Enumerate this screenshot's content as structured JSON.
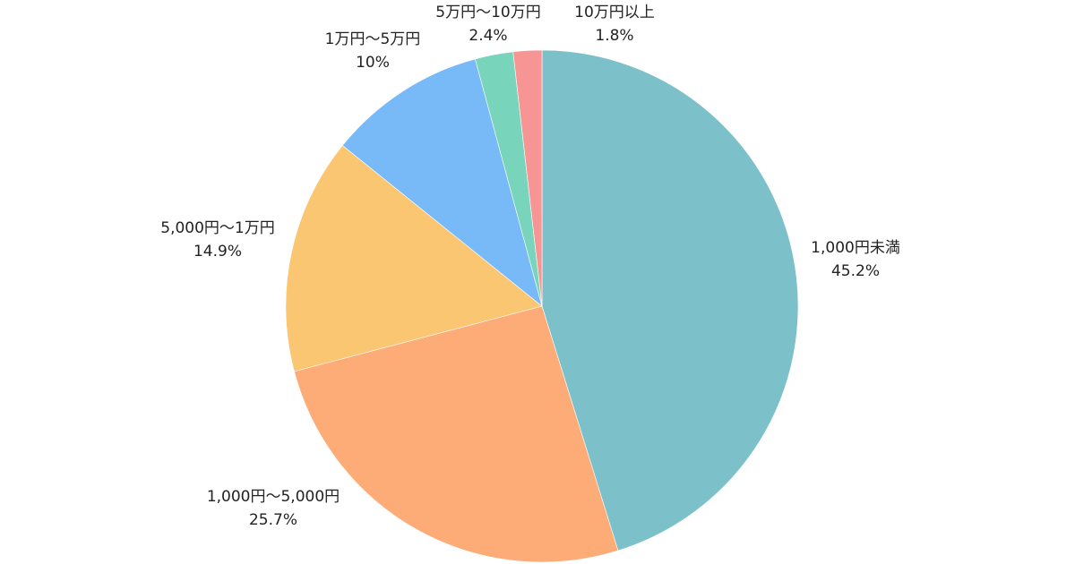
{
  "chart_data": {
    "type": "pie",
    "title": "",
    "legend": "none",
    "start_angle_deg": 0,
    "direction": "clockwise",
    "slices": [
      {
        "label": "1,000円未満",
        "value": 45.2,
        "value_label": "45.2%",
        "color": "#7cc1ca"
      },
      {
        "label": "1,000円〜5,000円",
        "value": 25.7,
        "value_label": "25.7%",
        "color": "#fdab77"
      },
      {
        "label": "5,000円〜1万円",
        "value": 14.9,
        "value_label": "14.9%",
        "color": "#fbc672"
      },
      {
        "label": "1万円〜5万円",
        "value": 10,
        "value_label": "10%",
        "color": "#78b9f8"
      },
      {
        "label": "5万円〜10万円",
        "value": 2.4,
        "value_label": "2.4%",
        "color": "#78d5bb"
      },
      {
        "label": "10万円以上",
        "value": 1.8,
        "value_label": "1.8%",
        "color": "#f79595"
      }
    ]
  }
}
